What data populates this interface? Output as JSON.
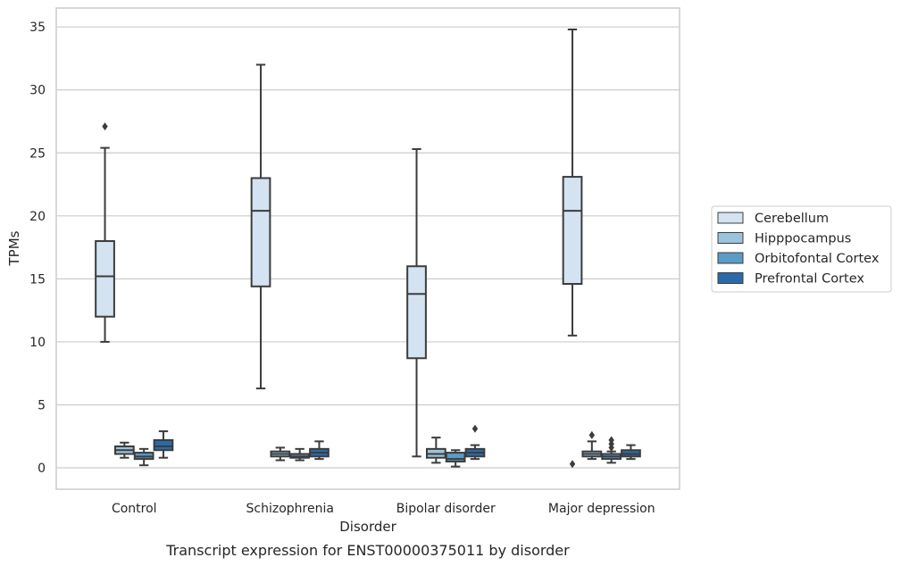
{
  "chart_data": {
    "type": "box",
    "caption": "Transcript expression for ENST00000375011 by disorder",
    "xlabel": "Disorder",
    "ylabel": "TPMs",
    "ylim": [
      -1.7,
      36.5
    ],
    "yticks": [
      0,
      5,
      10,
      15,
      20,
      25,
      30,
      35
    ],
    "grid": true,
    "legend_position": "right",
    "categories": [
      "Control",
      "Schizophrenia",
      "Bipolar disorder",
      "Major depression"
    ],
    "series": [
      {
        "name": "Cerebellum",
        "color": "#d4e3f1",
        "boxes": [
          {
            "whislo": 10.0,
            "q1": 12.0,
            "med": 15.2,
            "q3": 18.0,
            "whishi": 25.4,
            "fliers": [
              27.1
            ]
          },
          {
            "whislo": 6.3,
            "q1": 14.4,
            "med": 20.4,
            "q3": 23.0,
            "whishi": 32.0,
            "fliers": []
          },
          {
            "whislo": 0.9,
            "q1": 8.7,
            "med": 13.8,
            "q3": 16.0,
            "whishi": 25.3,
            "fliers": []
          },
          {
            "whislo": 10.5,
            "q1": 14.6,
            "med": 20.4,
            "q3": 23.1,
            "whishi": 34.8,
            "fliers": [
              0.3
            ]
          }
        ]
      },
      {
        "name": "Hipppocampus",
        "color": "#9cc3dc",
        "boxes": [
          {
            "whislo": 0.8,
            "q1": 1.1,
            "med": 1.4,
            "q3": 1.7,
            "whishi": 2.0,
            "fliers": []
          },
          {
            "whislo": 0.6,
            "q1": 0.9,
            "med": 1.1,
            "q3": 1.3,
            "whishi": 1.6,
            "fliers": []
          },
          {
            "whislo": 0.4,
            "q1": 0.8,
            "med": 1.1,
            "q3": 1.5,
            "whishi": 2.4,
            "fliers": []
          },
          {
            "whislo": 0.7,
            "q1": 0.9,
            "med": 1.1,
            "q3": 1.3,
            "whishi": 2.1,
            "fliers": [
              2.6
            ]
          }
        ]
      },
      {
        "name": "Orbitofontal Cortex",
        "color": "#5a9bc8",
        "boxes": [
          {
            "whislo": 0.2,
            "q1": 0.7,
            "med": 0.9,
            "q3": 1.2,
            "whishi": 1.5,
            "fliers": []
          },
          {
            "whislo": 0.6,
            "q1": 0.8,
            "med": 0.9,
            "q3": 1.1,
            "whishi": 1.5,
            "fliers": []
          },
          {
            "whislo": 0.1,
            "q1": 0.5,
            "med": 0.7,
            "q3": 1.2,
            "whishi": 1.4,
            "fliers": []
          },
          {
            "whislo": 0.4,
            "q1": 0.7,
            "med": 0.9,
            "q3": 1.1,
            "whishi": 1.3,
            "fliers": [
              1.6,
              1.9,
              2.2
            ]
          }
        ]
      },
      {
        "name": "Prefrontal Cortex",
        "color": "#2b6aa8",
        "boxes": [
          {
            "whislo": 0.8,
            "q1": 1.4,
            "med": 1.7,
            "q3": 2.2,
            "whishi": 2.9,
            "fliers": []
          },
          {
            "whislo": 0.7,
            "q1": 0.9,
            "med": 1.2,
            "q3": 1.5,
            "whishi": 2.1,
            "fliers": []
          },
          {
            "whislo": 0.7,
            "q1": 0.9,
            "med": 1.2,
            "q3": 1.5,
            "whishi": 1.8,
            "fliers": [
              3.1
            ]
          },
          {
            "whislo": 0.7,
            "q1": 0.9,
            "med": 1.1,
            "q3": 1.4,
            "whishi": 1.8,
            "fliers": []
          }
        ]
      }
    ]
  }
}
